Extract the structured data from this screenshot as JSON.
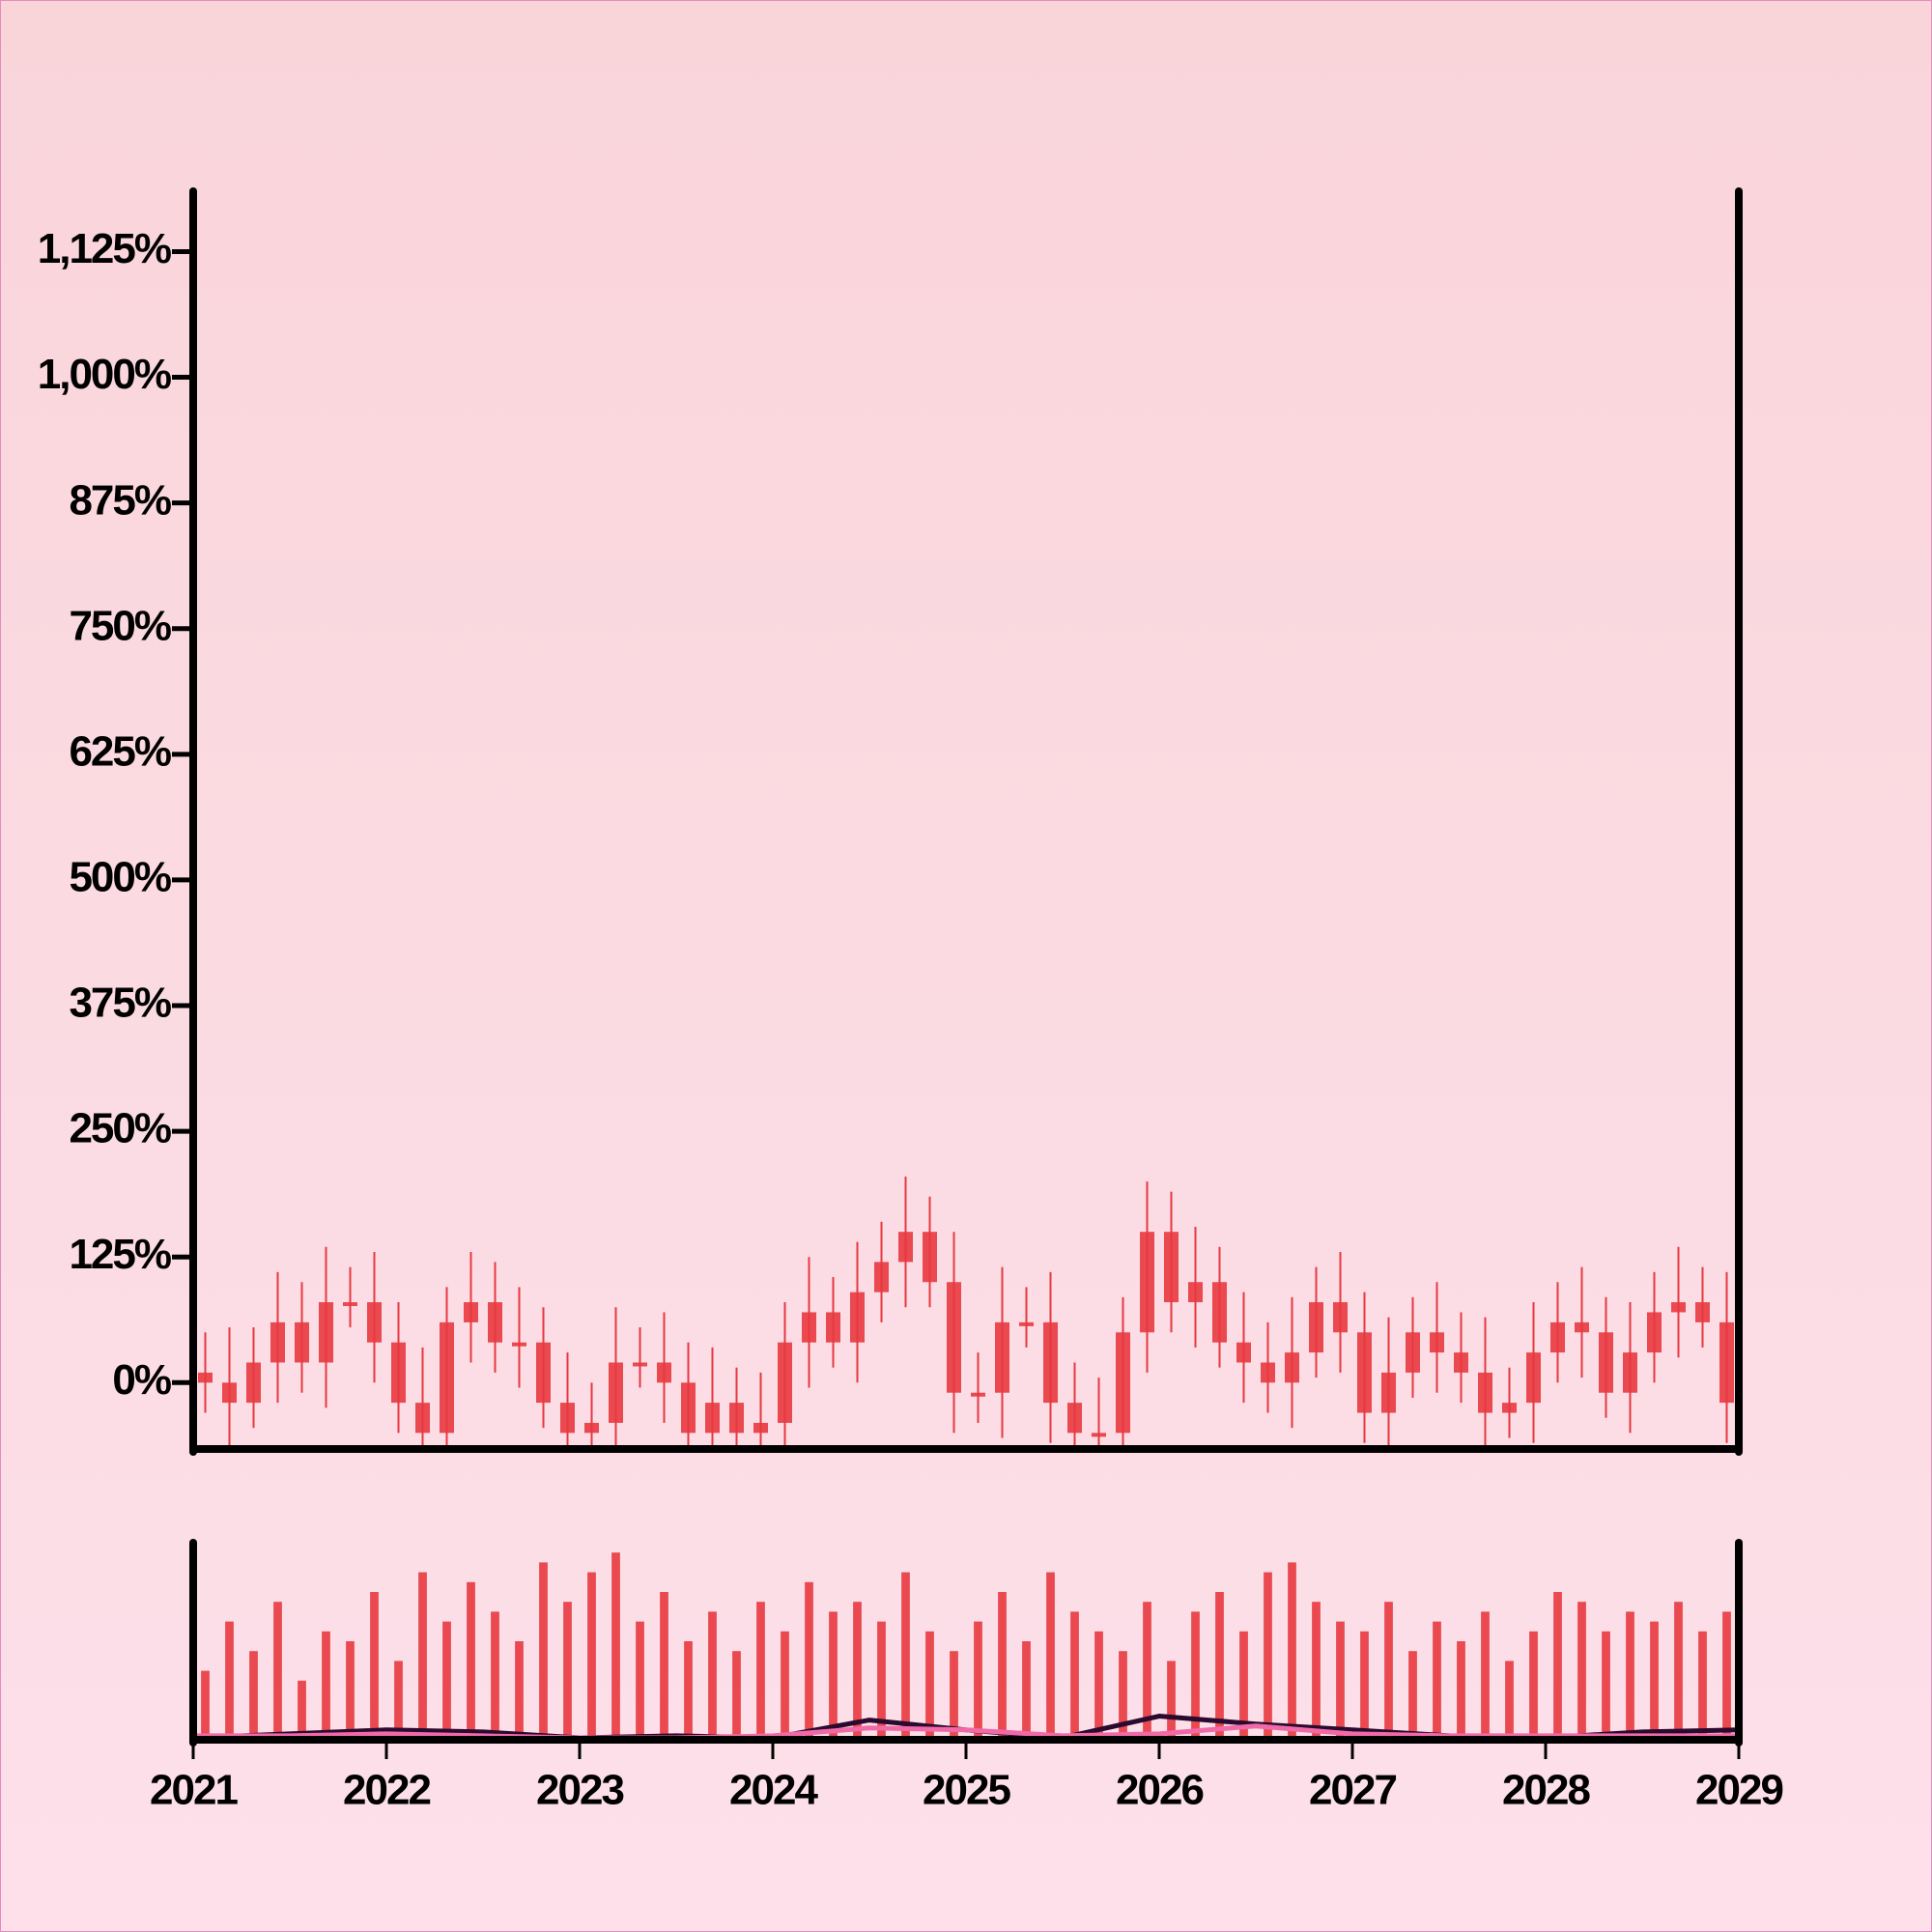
{
  "chart_data": [
    {
      "type": "candlestick",
      "color": "#e8383f",
      "x": [
        2021.0625,
        2021.1875,
        2021.3125,
        2021.4375,
        2021.5625,
        2021.6875,
        2021.8125,
        2021.9375,
        2022.0625,
        2022.1875,
        2022.3125,
        2022.4375,
        2022.5625,
        2022.6875,
        2022.8125,
        2022.9375,
        2023.0625,
        2023.1875,
        2023.3125,
        2023.4375,
        2023.5625,
        2023.6875,
        2023.8125,
        2023.9375,
        2024.0625,
        2024.1875,
        2024.3125,
        2024.4375,
        2024.5625,
        2024.6875,
        2024.8125,
        2024.9375,
        2025.0625,
        2025.1875,
        2025.3125,
        2025.4375,
        2025.5625,
        2025.6875,
        2025.8125,
        2025.9375,
        2026.0625,
        2026.1875,
        2026.3125,
        2026.4375,
        2026.5625,
        2026.6875,
        2026.8125,
        2026.9375,
        2027.0625,
        2027.1875,
        2027.3125,
        2027.4375,
        2027.5625,
        2027.6875,
        2027.8125,
        2027.9375,
        2028.0625,
        2028.1875,
        2028.3125,
        2028.4375,
        2028.5625,
        2028.6875,
        2028.8125,
        2028.9375
      ],
      "open": [
        10,
        0,
        -20,
        20,
        60,
        20,
        80,
        80,
        40,
        -20,
        -50,
        60,
        80,
        40,
        40,
        -20,
        -50,
        -40,
        20,
        20,
        0,
        -50,
        -20,
        -50,
        -40,
        40,
        70,
        40,
        90,
        120,
        150,
        100,
        -10,
        -10,
        60,
        60,
        -20,
        -50,
        -50,
        50,
        150,
        80,
        100,
        40,
        20,
        0,
        30,
        80,
        50,
        -30,
        10,
        50,
        30,
        10,
        -30,
        -20,
        30,
        60,
        50,
        -10,
        30,
        70,
        80,
        60
      ],
      "high": [
        50,
        55,
        55,
        110,
        100,
        135,
        115,
        130,
        80,
        35,
        95,
        130,
        120,
        95,
        75,
        30,
        0,
        75,
        55,
        70,
        40,
        35,
        15,
        10,
        80,
        125,
        105,
        140,
        160,
        205,
        185,
        150,
        30,
        115,
        95,
        110,
        20,
        5,
        85,
        200,
        190,
        155,
        135,
        90,
        60,
        85,
        115,
        130,
        90,
        65,
        85,
        100,
        70,
        65,
        15,
        80,
        100,
        115,
        85,
        80,
        110,
        135,
        115,
        110
      ],
      "low": [
        -30,
        -65,
        -45,
        -20,
        -10,
        -25,
        55,
        0,
        -50,
        -95,
        -75,
        20,
        10,
        -5,
        -45,
        -90,
        -80,
        -85,
        -5,
        -40,
        -80,
        -95,
        -75,
        -90,
        -70,
        -5,
        15,
        0,
        60,
        75,
        75,
        -50,
        -40,
        -55,
        35,
        -60,
        -80,
        -95,
        -75,
        10,
        50,
        35,
        15,
        -20,
        -30,
        -45,
        5,
        10,
        -60,
        -75,
        -15,
        -10,
        -20,
        -75,
        -55,
        -60,
        0,
        5,
        -35,
        -50,
        0,
        25,
        35,
        -60
      ],
      "close": [
        0,
        -20,
        20,
        60,
        20,
        80,
        80,
        40,
        -20,
        -50,
        60,
        80,
        40,
        40,
        -20,
        -50,
        -40,
        20,
        20,
        0,
        -50,
        -20,
        -50,
        -40,
        40,
        70,
        40,
        90,
        120,
        150,
        100,
        -10,
        -10,
        60,
        60,
        -20,
        -50,
        -50,
        50,
        150,
        80,
        100,
        40,
        20,
        0,
        30,
        80,
        50,
        -30,
        10,
        50,
        30,
        10,
        -30,
        -20,
        30,
        60,
        50,
        -10,
        30,
        70,
        80,
        60,
        -20
      ],
      "xlim": [
        2021,
        2029
      ],
      "ylim": [
        -66,
        1185
      ],
      "yticks": [
        {
          "value": 0,
          "label": "0%"
        },
        {
          "value": 125,
          "label": "125%"
        },
        {
          "value": 250,
          "label": "250%"
        },
        {
          "value": 375,
          "label": "375%"
        },
        {
          "value": 500,
          "label": "500%"
        },
        {
          "value": 625,
          "label": "625%"
        },
        {
          "value": 750,
          "label": "750%"
        },
        {
          "value": 875,
          "label": "875%"
        },
        {
          "value": 1000,
          "label": "1,000%"
        },
        {
          "value": 1125,
          "label": "1,125%"
        }
      ]
    },
    {
      "type": "bar",
      "color": "#e8383f",
      "x": [
        2021.0625,
        2021.1875,
        2021.3125,
        2021.4375,
        2021.5625,
        2021.6875,
        2021.8125,
        2021.9375,
        2022.0625,
        2022.1875,
        2022.3125,
        2022.4375,
        2022.5625,
        2022.6875,
        2022.8125,
        2022.9375,
        2023.0625,
        2023.1875,
        2023.3125,
        2023.4375,
        2023.5625,
        2023.6875,
        2023.8125,
        2023.9375,
        2024.0625,
        2024.1875,
        2024.3125,
        2024.4375,
        2024.5625,
        2024.6875,
        2024.8125,
        2024.9375,
        2025.0625,
        2025.1875,
        2025.3125,
        2025.4375,
        2025.5625,
        2025.6875,
        2025.8125,
        2025.9375,
        2026.0625,
        2026.1875,
        2026.3125,
        2026.4375,
        2026.5625,
        2026.6875,
        2026.8125,
        2026.9375,
        2027.0625,
        2027.1875,
        2027.3125,
        2027.4375,
        2027.5625,
        2027.6875,
        2027.8125,
        2027.9375,
        2028.0625,
        2028.1875,
        2028.3125,
        2028.4375,
        2028.5625,
        2028.6875,
        2028.8125,
        2028.9375
      ],
      "values": [
        35,
        60,
        45,
        70,
        30,
        55,
        50,
        75,
        40,
        85,
        60,
        80,
        65,
        50,
        90,
        70,
        85,
        95,
        60,
        75,
        50,
        65,
        45,
        70,
        55,
        80,
        65,
        70,
        60,
        85,
        55,
        45,
        60,
        75,
        50,
        85,
        65,
        55,
        45,
        70,
        40,
        65,
        75,
        55,
        85,
        90,
        70,
        60,
        55,
        70,
        45,
        60,
        50,
        65,
        40,
        55,
        75,
        70,
        55,
        65,
        60,
        70,
        55,
        65
      ],
      "lines": [
        {
          "color": "#2a0a2e",
          "x": [
            2021,
            2021.5,
            2022,
            2022.5,
            2023,
            2023.5,
            2024,
            2024.5,
            2025,
            2025.5,
            2026,
            2026.5,
            2027,
            2027.5,
            2028,
            2028.5,
            2029
          ],
          "values": [
            1,
            3,
            5,
            4,
            1,
            2,
            1,
            10,
            5,
            1,
            12,
            8,
            5,
            2,
            1,
            4,
            5
          ]
        },
        {
          "color": "#f06aa8",
          "x": [
            2021,
            2021.5,
            2022,
            2022.5,
            2023,
            2023.5,
            2024,
            2024.5,
            2025,
            2025.5,
            2026,
            2026.5,
            2027,
            2027.5,
            2028,
            2028.5,
            2029
          ],
          "values": [
            2,
            2,
            3,
            2,
            1,
            1,
            2,
            6,
            5,
            2,
            3,
            7,
            3,
            2,
            2,
            2,
            2
          ]
        }
      ],
      "xlim": [
        2021,
        2029
      ],
      "ylim": [
        0,
        100
      ],
      "xticks": [
        2021,
        2022,
        2023,
        2024,
        2025,
        2026,
        2027,
        2028,
        2029
      ]
    }
  ]
}
